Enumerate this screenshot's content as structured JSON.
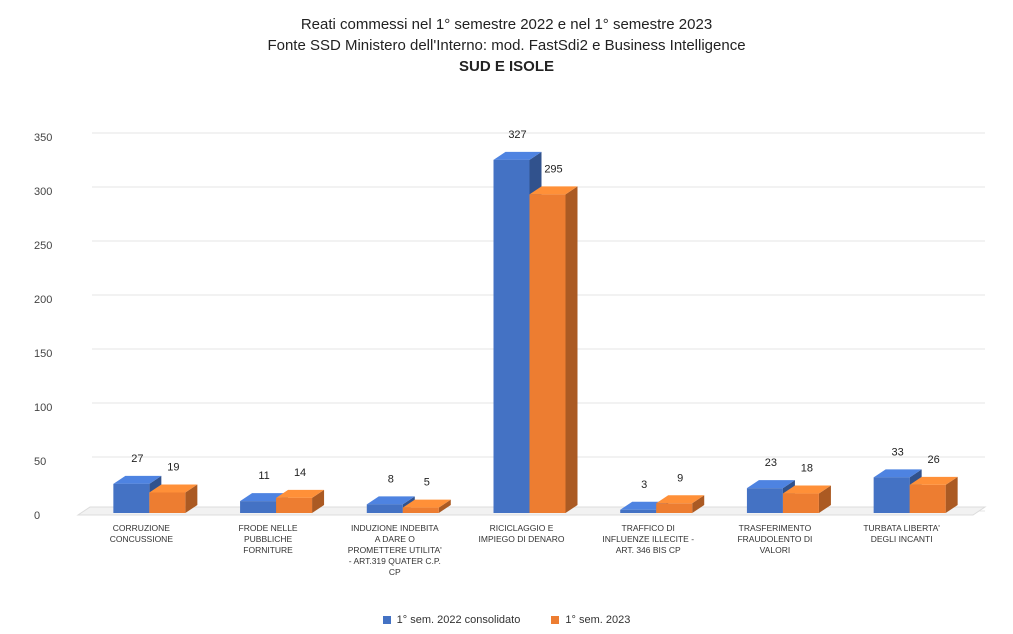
{
  "chart_data": {
    "type": "bar",
    "title": "Reati commessi nel 1° semestre 2022 e nel 1° semestre 2023",
    "subtitle": "Fonte SSD Ministero dell'Interno: mod. FastSdi2 e Business Intelligence",
    "region": "SUD E ISOLE",
    "categories": [
      [
        "CORRUZIONE",
        "CONCUSSIONE"
      ],
      [
        "FRODE NELLE",
        "PUBBLICHE",
        "FORNITURE"
      ],
      [
        "INDUZIONE INDEBITA",
        "A DARE O",
        "PROMETTERE UTILITA'",
        "- ART.319 QUATER C.P.",
        "CP"
      ],
      [
        "RICICLAGGIO E",
        "IMPIEGO DI DENARO"
      ],
      [
        "TRAFFICO DI",
        "INFLUENZE ILLECITE -",
        "ART. 346 BIS CP"
      ],
      [
        "TRASFERIMENTO",
        "FRAUDOLENTO DI",
        "VALORI"
      ],
      [
        "TURBATA LIBERTA'",
        "DEGLI INCANTI"
      ]
    ],
    "series": [
      {
        "name": "1° sem. 2022 consolidato",
        "color": "#4472C4",
        "values": [
          27,
          11,
          8,
          327,
          3,
          23,
          33
        ]
      },
      {
        "name": "1° sem. 2023",
        "color": "#ED7D31",
        "values": [
          19,
          14,
          5,
          295,
          9,
          18,
          26
        ]
      }
    ],
    "ylim": [
      0,
      350
    ],
    "yticks": [
      0,
      50,
      100,
      150,
      200,
      250,
      300,
      350
    ],
    "grid": true,
    "legend_position": "bottom"
  }
}
